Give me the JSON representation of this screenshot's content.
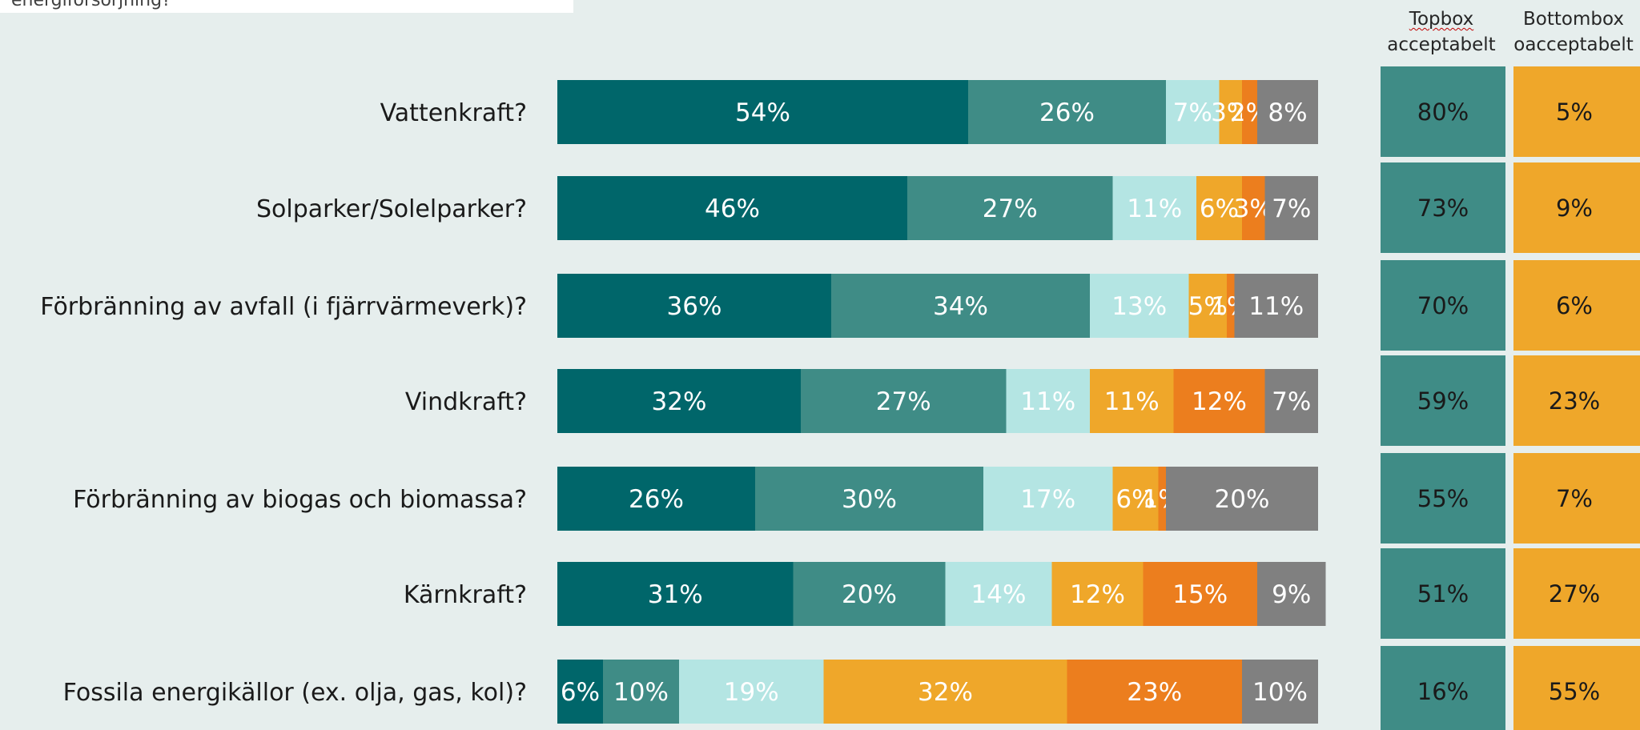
{
  "title_fragment": "energiförsörjning?",
  "headers": {
    "topbox_line1": "Topbox",
    "topbox_line2": "acceptabelt",
    "bottombox_line1": "Bottombox",
    "bottombox_line2": "oacceptabelt"
  },
  "colors": {
    "background": "#e6eeed",
    "seg1": "#00666a",
    "seg2": "#3f8c86",
    "seg3": "#b4e5e3",
    "seg4": "#efa72a",
    "seg5": "#ec7e1e",
    "seg6": "#808080",
    "topbox": "#3f8c86",
    "bottombox": "#efa72a"
  },
  "chart_data": {
    "type": "bar",
    "orientation": "horizontal",
    "stacked": true,
    "xlim": [
      0,
      100
    ],
    "categories": [
      "Vattenkraft?",
      "Solparker/Solelparker?",
      "Förbränning av avfall (i fjärrvärmeverk)?",
      "Vindkraft?",
      "Förbränning av biogas och biomassa?",
      "Kärnkraft?",
      "Fossila energikällor (ex. olja, gas, kol)?"
    ],
    "series": [
      {
        "values": [
          54,
          46,
          36,
          32,
          26,
          31,
          6
        ],
        "labels": [
          "54%",
          "46%",
          "36%",
          "32%",
          "26%",
          "31%",
          "6%"
        ]
      },
      {
        "values": [
          26,
          27,
          34,
          27,
          30,
          20,
          10
        ],
        "labels": [
          "26%",
          "27%",
          "34%",
          "27%",
          "30%",
          "20%",
          "10%"
        ]
      },
      {
        "values": [
          7,
          11,
          13,
          11,
          17,
          14,
          19
        ],
        "labels": [
          "7%",
          "11%",
          "13%",
          "11%",
          "17%",
          "14%",
          "19%"
        ]
      },
      {
        "values": [
          3,
          6,
          5,
          11,
          6,
          12,
          32
        ],
        "labels": [
          "3%",
          "6%",
          "5%",
          "11%",
          "6%",
          "12%",
          "32%"
        ]
      },
      {
        "values": [
          2,
          3,
          1,
          12,
          1,
          15,
          23
        ],
        "labels": [
          "2%",
          "3%",
          "1%",
          "12%",
          "1%",
          "15%",
          "23%"
        ]
      },
      {
        "values": [
          8,
          7,
          11,
          7,
          20,
          9,
          10
        ],
        "labels": [
          "8%",
          "7%",
          "11%",
          "7%",
          "20%",
          "9%",
          "10%"
        ]
      }
    ],
    "topbox": {
      "values": [
        80,
        73,
        70,
        59,
        55,
        51,
        16
      ],
      "labels": [
        "80%",
        "73%",
        "70%",
        "59%",
        "55%",
        "51%",
        "16%"
      ]
    },
    "bottombox": {
      "values": [
        5,
        9,
        6,
        23,
        7,
        27,
        55
      ],
      "labels": [
        "5%",
        "9%",
        "6%",
        "23%",
        "7%",
        "27%",
        "55%"
      ]
    }
  }
}
